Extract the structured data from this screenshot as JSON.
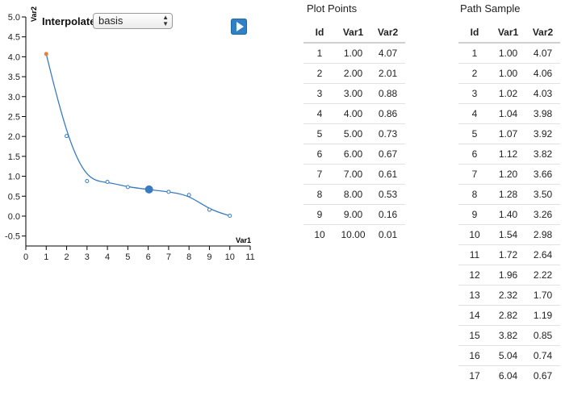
{
  "controls": {
    "interpolate_label": "Interpolate:",
    "interpolate_value": "basis",
    "play_icon": "play-icon"
  },
  "plot_points_table": {
    "title": "Plot Points",
    "headers": [
      "Id",
      "Var1",
      "Var2"
    ],
    "rows": [
      [
        "1",
        "1.00",
        "4.07"
      ],
      [
        "2",
        "2.00",
        "2.01"
      ],
      [
        "3",
        "3.00",
        "0.88"
      ],
      [
        "4",
        "4.00",
        "0.86"
      ],
      [
        "5",
        "5.00",
        "0.73"
      ],
      [
        "6",
        "6.00",
        "0.67"
      ],
      [
        "7",
        "7.00",
        "0.61"
      ],
      [
        "8",
        "8.00",
        "0.53"
      ],
      [
        "9",
        "9.00",
        "0.16"
      ],
      [
        "10",
        "10.00",
        "0.01"
      ]
    ]
  },
  "path_sample_table": {
    "title": "Path Sample",
    "headers": [
      "Id",
      "Var1",
      "Var2"
    ],
    "rows": [
      [
        "1",
        "1.00",
        "4.07"
      ],
      [
        "2",
        "1.00",
        "4.06"
      ],
      [
        "3",
        "1.02",
        "4.03"
      ],
      [
        "4",
        "1.04",
        "3.98"
      ],
      [
        "5",
        "1.07",
        "3.92"
      ],
      [
        "6",
        "1.12",
        "3.82"
      ],
      [
        "7",
        "1.20",
        "3.66"
      ],
      [
        "8",
        "1.28",
        "3.50"
      ],
      [
        "9",
        "1.40",
        "3.26"
      ],
      [
        "10",
        "1.54",
        "2.98"
      ],
      [
        "11",
        "1.72",
        "2.64"
      ],
      [
        "12",
        "1.96",
        "2.22"
      ],
      [
        "13",
        "2.32",
        "1.70"
      ],
      [
        "14",
        "2.82",
        "1.19"
      ],
      [
        "15",
        "3.82",
        "0.85"
      ],
      [
        "16",
        "5.04",
        "0.74"
      ],
      [
        "17",
        "6.04",
        "0.67"
      ]
    ]
  },
  "chart_data": {
    "type": "line",
    "interpolation": "basis",
    "xlabel": "Var1",
    "ylabel": "Var2",
    "xlim": [
      0,
      11
    ],
    "ylim": [
      -0.75,
      5.0
    ],
    "x_ticks": [
      "0",
      "1",
      "2",
      "3",
      "4",
      "5",
      "6",
      "7",
      "8",
      "9",
      "10",
      "11"
    ],
    "y_ticks": [
      "5.0",
      "4.5",
      "4.0",
      "3.5",
      "3.0",
      "2.5",
      "2.0",
      "1.5",
      "1.0",
      "0.5",
      "0.0",
      "-0.5"
    ],
    "grid": false,
    "points": [
      {
        "x": 1,
        "y": 4.07
      },
      {
        "x": 2,
        "y": 2.01
      },
      {
        "x": 3,
        "y": 0.88
      },
      {
        "x": 4,
        "y": 0.86
      },
      {
        "x": 5,
        "y": 0.73
      },
      {
        "x": 6,
        "y": 0.67
      },
      {
        "x": 7,
        "y": 0.61
      },
      {
        "x": 8,
        "y": 0.53
      },
      {
        "x": 9,
        "y": 0.16
      },
      {
        "x": 10,
        "y": 0.01
      }
    ],
    "first_point_color": "#e8803a",
    "line_color": "#3a7bbf",
    "current_marker": {
      "x": 6.04,
      "y": 0.67
    }
  }
}
